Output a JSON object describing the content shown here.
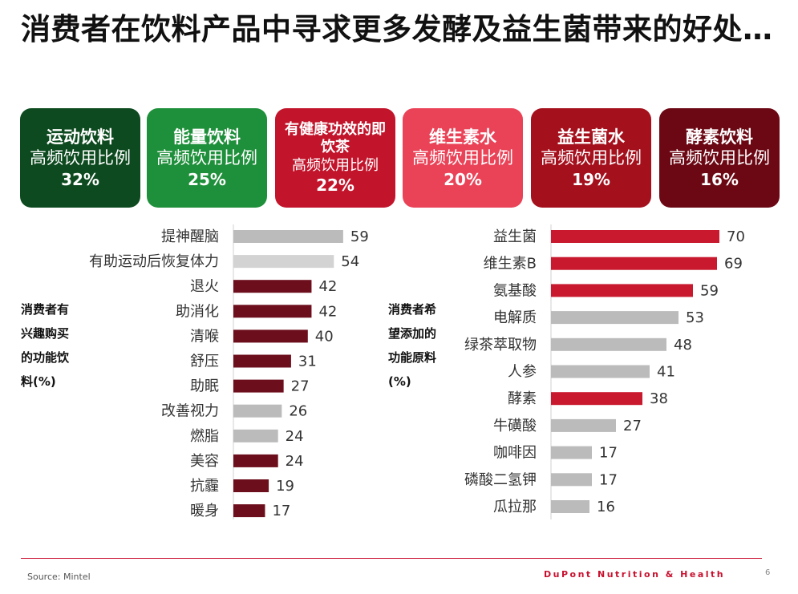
{
  "title": "消费者在饮料产品中寻求更多发酵及益生菌带来的好处…",
  "cards": [
    {
      "title": "运动饮料",
      "subtitle": "高频饮用比例",
      "value": "32%",
      "color": "#0d4a1f"
    },
    {
      "title": "能量饮料",
      "subtitle": "高频饮用比例",
      "value": "25%",
      "color": "#1e8f3a"
    },
    {
      "title": "有健康功效的即饮茶",
      "subtitle": "高频饮用比例",
      "value": "22%",
      "color": "#c2152c"
    },
    {
      "title": "维生素水",
      "subtitle": "高频饮用比例",
      "value": "20%",
      "color": "#ea4358"
    },
    {
      "title": "益生菌水",
      "subtitle": "高频饮用比例",
      "value": "19%",
      "color": "#a5101d"
    },
    {
      "title": "酵素饮料",
      "subtitle": "高频饮用比例",
      "value": "16%",
      "color": "#6c0814"
    }
  ],
  "left_label": "消费者有兴趣购买的功能饮料(%)",
  "right_label": "消费者希望添加的功能原料(%)",
  "chart_data": [
    {
      "type": "bar",
      "orientation": "horizontal",
      "title": "消费者有兴趣购买的功能饮料(%)",
      "xlim": [
        0,
        70
      ],
      "categories": [
        "提神醒脑",
        "有助运动后恢复体力",
        "退火",
        "助消化",
        "清喉",
        "舒压",
        "助眠",
        "改善视力",
        "燃脂",
        "美容",
        "抗霾",
        "暖身"
      ],
      "values": [
        59,
        54,
        42,
        42,
        40,
        31,
        27,
        26,
        24,
        24,
        19,
        17
      ],
      "colors": [
        "#bbbbbb",
        "#d3d3d3",
        "#6d0e1c",
        "#6d0e1c",
        "#6d0e1c",
        "#6d0e1c",
        "#6d0e1c",
        "#bbbbbb",
        "#bbbbbb",
        "#6d0e1c",
        "#6d0e1c",
        "#6d0e1c"
      ]
    },
    {
      "type": "bar",
      "orientation": "horizontal",
      "title": "消费者希望添加的功能原料(%)",
      "xlim": [
        0,
        70
      ],
      "categories": [
        "益生菌",
        "维生素B",
        "氨基酸",
        "电解质",
        "绿茶萃取物",
        "人参",
        "酵素",
        "牛磺酸",
        "咖啡因",
        "磷酸二氢钾",
        "瓜拉那"
      ],
      "values": [
        70,
        69,
        59,
        53,
        48,
        41,
        38,
        27,
        17,
        17,
        16
      ],
      "colors": [
        "#c8192e",
        "#c8192e",
        "#c8192e",
        "#bbbbbb",
        "#bbbbbb",
        "#bbbbbb",
        "#c8192e",
        "#bbbbbb",
        "#bbbbbb",
        "#bbbbbb",
        "#bbbbbb"
      ]
    }
  ],
  "footer": {
    "source": "Source: Mintel",
    "brand": "DuPont Nutrition & Health",
    "page": "6"
  }
}
